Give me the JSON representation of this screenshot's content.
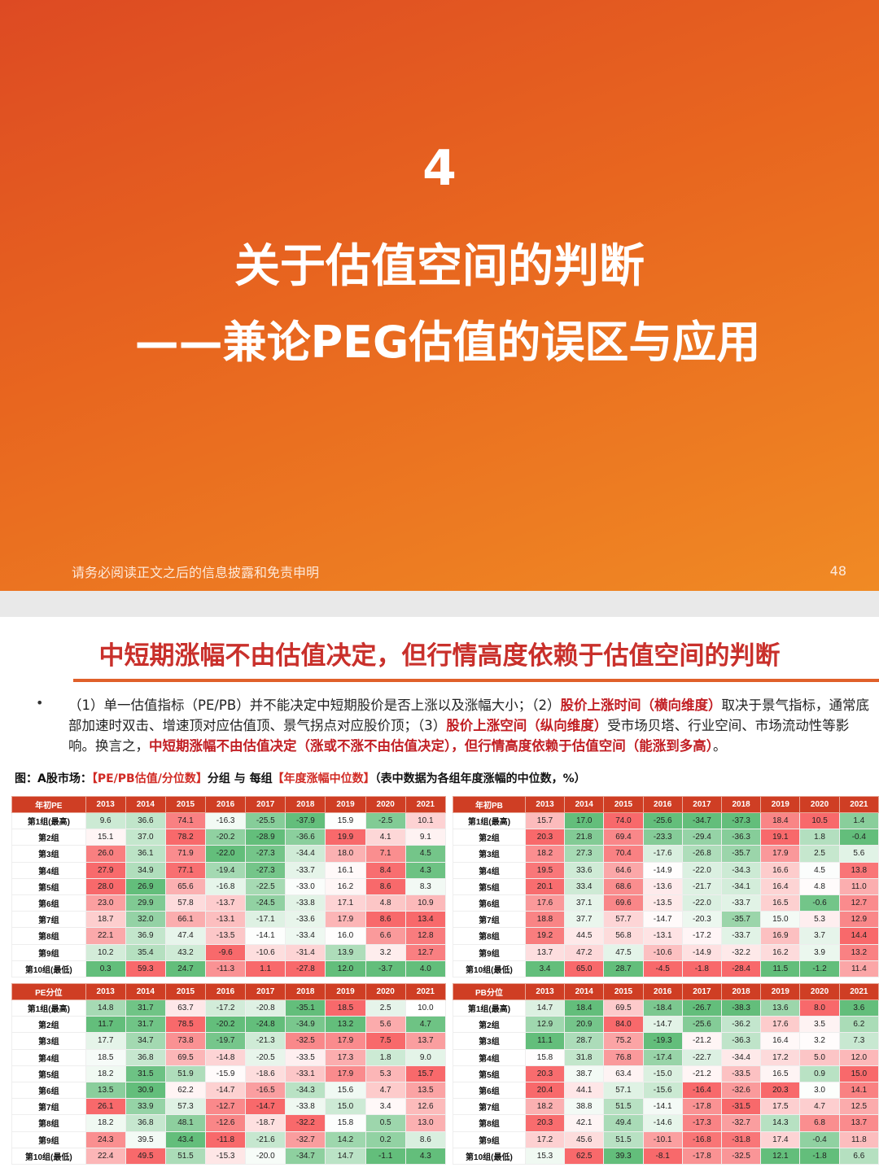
{
  "slide1": {
    "number": "4",
    "title": "关于估值空间的判断",
    "subtitle": "——兼论PEG估值的误区与应用",
    "footer": "请务必阅读正文之后的信息披露和免责申明",
    "page": "48"
  },
  "slide2": {
    "heading": "中短期涨幅不由估值决定，但行情高度依赖于估值空间的判断",
    "bullet": "•",
    "body": {
      "p1": "（1）单一估值指标（PE/PB）并不能决定中短期股价是否上涨以及涨幅大小；（2）",
      "r1": "股价上涨时间（横向维度）",
      "p2": "取决于景气指标，通常底部加速时双击、增速顶对应估值顶、景气拐点对应股价顶；（3）",
      "r2": "股价上涨空间（纵向维度）",
      "p3": "受市场贝塔、行业空间、市场流动性等影响。换言之，",
      "r3": "中短期涨幅不由估值决定（涨或不涨不由估值决定），但行情高度依赖于估值空间（能涨到多高）",
      "p4": "。"
    },
    "caption": {
      "prefix": "图：A股市场：",
      "red1": "【PE/PB估值/分位数】",
      "mid": "分组 与 每组",
      "red2": "【年度涨幅中位数】",
      "suffix": "（表中数据为各组年度涨幅的中位数，%）"
    }
  },
  "tables": [
    {
      "corner": "年初PE",
      "years": [
        "2013",
        "2014",
        "2015",
        "2016",
        "2017",
        "2018",
        "2019",
        "2020",
        "2021"
      ],
      "rows": [
        {
          "label": "第1组(最高)",
          "values": [
            "9.6",
            "36.6",
            "74.1",
            "-16.3",
            "-25.5",
            "-37.9",
            "15.9",
            "-2.5",
            "10.1"
          ]
        },
        {
          "label": "第2组",
          "values": [
            "15.1",
            "37.0",
            "78.2",
            "-20.2",
            "-28.9",
            "-36.6",
            "19.9",
            "4.1",
            "9.1"
          ]
        },
        {
          "label": "第3组",
          "values": [
            "26.0",
            "36.1",
            "71.9",
            "-22.0",
            "-27.3",
            "-34.4",
            "18.0",
            "7.1",
            "4.5"
          ]
        },
        {
          "label": "第4组",
          "values": [
            "27.9",
            "34.9",
            "77.1",
            "-19.4",
            "-27.3",
            "-33.7",
            "16.1",
            "8.4",
            "4.3"
          ]
        },
        {
          "label": "第5组",
          "values": [
            "28.0",
            "26.9",
            "65.6",
            "-16.8",
            "-22.5",
            "-33.0",
            "16.2",
            "8.6",
            "8.3"
          ]
        },
        {
          "label": "第6组",
          "values": [
            "23.0",
            "29.9",
            "57.8",
            "-13.7",
            "-24.5",
            "-33.8",
            "17.1",
            "4.8",
            "10.9"
          ]
        },
        {
          "label": "第7组",
          "values": [
            "18.7",
            "32.0",
            "66.1",
            "-13.1",
            "-17.1",
            "-33.6",
            "17.9",
            "8.6",
            "13.4"
          ]
        },
        {
          "label": "第8组",
          "values": [
            "22.1",
            "36.9",
            "47.4",
            "-13.5",
            "-14.1",
            "-33.4",
            "16.0",
            "6.6",
            "12.8"
          ]
        },
        {
          "label": "第9组",
          "values": [
            "10.2",
            "35.4",
            "43.2",
            "-9.6",
            "-10.6",
            "-31.4",
            "13.9",
            "3.2",
            "12.7"
          ]
        },
        {
          "label": "第10组(最低)",
          "values": [
            "0.3",
            "59.3",
            "24.7",
            "-11.3",
            "1.1",
            "-27.8",
            "12.0",
            "-3.7",
            "4.0"
          ]
        }
      ]
    },
    {
      "corner": "年初PB",
      "years": [
        "2013",
        "2014",
        "2015",
        "2016",
        "2017",
        "2018",
        "2019",
        "2020",
        "2021"
      ],
      "rows": [
        {
          "label": "第1组(最高)",
          "values": [
            "15.7",
            "17.0",
            "74.0",
            "-25.6",
            "-34.7",
            "-37.3",
            "18.4",
            "10.5",
            "1.4"
          ]
        },
        {
          "label": "第2组",
          "values": [
            "20.3",
            "21.8",
            "69.4",
            "-23.3",
            "-29.4",
            "-36.3",
            "19.1",
            "1.8",
            "-0.4"
          ]
        },
        {
          "label": "第3组",
          "values": [
            "18.2",
            "27.3",
            "70.4",
            "-17.6",
            "-26.8",
            "-35.7",
            "17.9",
            "2.5",
            "5.6"
          ]
        },
        {
          "label": "第4组",
          "values": [
            "19.5",
            "33.6",
            "64.6",
            "-14.9",
            "-22.0",
            "-34.3",
            "16.6",
            "4.5",
            "13.8"
          ]
        },
        {
          "label": "第5组",
          "values": [
            "20.1",
            "33.4",
            "68.6",
            "-13.6",
            "-21.7",
            "-34.1",
            "16.4",
            "4.8",
            "11.0"
          ]
        },
        {
          "label": "第6组",
          "values": [
            "17.6",
            "37.1",
            "69.6",
            "-13.5",
            "-22.0",
            "-33.7",
            "16.5",
            "-0.6",
            "12.7"
          ]
        },
        {
          "label": "第7组",
          "values": [
            "18.8",
            "37.7",
            "57.7",
            "-14.7",
            "-20.3",
            "-35.7",
            "15.0",
            "5.3",
            "12.9"
          ]
        },
        {
          "label": "第8组",
          "values": [
            "19.2",
            "44.5",
            "56.8",
            "-13.1",
            "-17.2",
            "-33.7",
            "16.9",
            "3.7",
            "14.4"
          ]
        },
        {
          "label": "第9组",
          "values": [
            "13.7",
            "47.2",
            "47.5",
            "-10.6",
            "-14.9",
            "-32.2",
            "16.2",
            "3.9",
            "13.2"
          ]
        },
        {
          "label": "第10组(最低)",
          "values": [
            "3.4",
            "65.0",
            "28.7",
            "-4.5",
            "-1.8",
            "-28.4",
            "11.5",
            "-1.2",
            "11.4"
          ]
        }
      ]
    },
    {
      "corner": "PE分位",
      "years": [
        "2013",
        "2014",
        "2015",
        "2016",
        "2017",
        "2018",
        "2019",
        "2020",
        "2021"
      ],
      "rows": [
        {
          "label": "第1组(最高)",
          "values": [
            "14.8",
            "31.7",
            "63.7",
            "-17.2",
            "-20.8",
            "-35.1",
            "18.5",
            "2.5",
            "10.0"
          ]
        },
        {
          "label": "第2组",
          "values": [
            "11.7",
            "31.7",
            "78.5",
            "-20.2",
            "-24.8",
            "-34.9",
            "13.2",
            "5.6",
            "4.7"
          ]
        },
        {
          "label": "第3组",
          "values": [
            "17.7",
            "34.7",
            "73.8",
            "-19.7",
            "-21.3",
            "-32.5",
            "17.9",
            "7.5",
            "13.7"
          ]
        },
        {
          "label": "第4组",
          "values": [
            "18.5",
            "36.8",
            "69.5",
            "-14.8",
            "-20.5",
            "-33.5",
            "17.3",
            "1.8",
            "9.0"
          ]
        },
        {
          "label": "第5组",
          "values": [
            "18.2",
            "31.5",
            "51.9",
            "-15.9",
            "-18.6",
            "-33.1",
            "17.9",
            "5.3",
            "15.7"
          ]
        },
        {
          "label": "第6组",
          "values": [
            "13.5",
            "30.9",
            "62.2",
            "-14.7",
            "-16.5",
            "-34.3",
            "15.6",
            "4.7",
            "13.5"
          ]
        },
        {
          "label": "第7组",
          "values": [
            "26.1",
            "33.9",
            "57.3",
            "-12.7",
            "-14.7",
            "-33.8",
            "15.0",
            "3.4",
            "12.6"
          ]
        },
        {
          "label": "第8组",
          "values": [
            "18.2",
            "36.8",
            "48.1",
            "-12.6",
            "-18.7",
            "-32.2",
            "15.8",
            "0.5",
            "13.0"
          ]
        },
        {
          "label": "第9组",
          "values": [
            "24.3",
            "39.5",
            "43.4",
            "-11.8",
            "-21.6",
            "-32.7",
            "14.2",
            "0.2",
            "8.6"
          ]
        },
        {
          "label": "第10组(最低)",
          "values": [
            "22.4",
            "49.5",
            "51.5",
            "-15.3",
            "-20.0",
            "-34.7",
            "14.7",
            "-1.1",
            "4.3"
          ]
        }
      ]
    },
    {
      "corner": "PB分位",
      "years": [
        "2013",
        "2014",
        "2015",
        "2016",
        "2017",
        "2018",
        "2019",
        "2020",
        "2021"
      ],
      "rows": [
        {
          "label": "第1组(最高)",
          "values": [
            "14.7",
            "18.4",
            "69.5",
            "-18.4",
            "-26.7",
            "-38.3",
            "13.6",
            "8.0",
            "3.6"
          ]
        },
        {
          "label": "第2组",
          "values": [
            "12.9",
            "20.9",
            "84.0",
            "-14.7",
            "-25.6",
            "-36.2",
            "17.6",
            "3.5",
            "6.2"
          ]
        },
        {
          "label": "第3组",
          "values": [
            "11.1",
            "28.7",
            "75.2",
            "-19.3",
            "-21.2",
            "-36.3",
            "16.4",
            "3.2",
            "7.3"
          ]
        },
        {
          "label": "第4组",
          "values": [
            "15.8",
            "31.8",
            "76.8",
            "-17.4",
            "-22.7",
            "-34.4",
            "17.2",
            "5.0",
            "12.0"
          ]
        },
        {
          "label": "第5组",
          "values": [
            "20.3",
            "38.7",
            "63.4",
            "-15.0",
            "-21.2",
            "-33.5",
            "16.5",
            "0.9",
            "15.0"
          ]
        },
        {
          "label": "第6组",
          "values": [
            "20.4",
            "44.1",
            "57.1",
            "-15.6",
            "-16.4",
            "-32.6",
            "20.3",
            "3.0",
            "14.1"
          ]
        },
        {
          "label": "第7组",
          "values": [
            "18.2",
            "38.8",
            "51.5",
            "-14.1",
            "-17.8",
            "-31.5",
            "17.5",
            "4.7",
            "12.5"
          ]
        },
        {
          "label": "第8组",
          "values": [
            "20.3",
            "42.1",
            "49.4",
            "-14.6",
            "-17.3",
            "-32.7",
            "14.3",
            "6.8",
            "13.7"
          ]
        },
        {
          "label": "第9组",
          "values": [
            "17.2",
            "45.6",
            "51.5",
            "-10.1",
            "-16.8",
            "-31.8",
            "17.4",
            "-0.4",
            "11.8"
          ]
        },
        {
          "label": "第10组(最低)",
          "values": [
            "15.3",
            "62.5",
            "39.3",
            "-8.1",
            "-17.8",
            "-32.5",
            "12.1",
            "-1.8",
            "6.6"
          ]
        }
      ]
    }
  ]
}
